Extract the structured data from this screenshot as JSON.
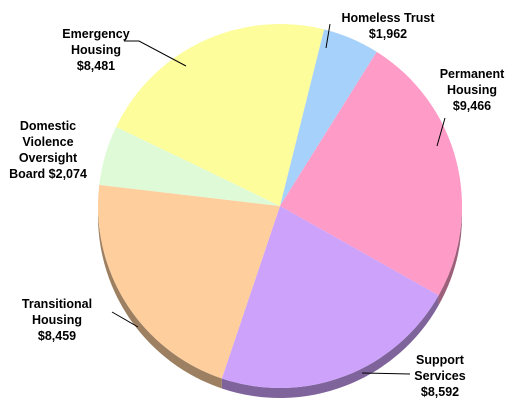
{
  "chart_data": {
    "type": "pie",
    "title": "",
    "slices": [
      {
        "name": "Homeless Trust",
        "value": 1962,
        "value_label": "$1,962",
        "color": "#a6d1fa"
      },
      {
        "name": "Permanent Housing",
        "value": 9466,
        "value_label": "$9,466",
        "color": "#fe9bc7"
      },
      {
        "name": "Support Services",
        "value": 8592,
        "value_label": "$8,592",
        "color": "#cda2fb"
      },
      {
        "name": "Transitional Housing",
        "value": 8459,
        "value_label": "$8,459",
        "color": "#fece9d"
      },
      {
        "name": "Domestic Violence Oversight Board",
        "value": 2074,
        "value_label": "$2,074",
        "color": "#dffad7"
      },
      {
        "name": "Emergency Housing",
        "value": 8481,
        "value_label": "$8,481",
        "color": "#fdfd9c"
      }
    ],
    "labels": {
      "homeless_trust": [
        "Homeless Trust",
        "$1,962"
      ],
      "permanent_housing": [
        "Permanent",
        "Housing",
        "$9,466"
      ],
      "support_services": [
        "Support",
        "Services",
        "$8,592"
      ],
      "transitional_housing": [
        "Transitional",
        "Housing",
        "$8,459"
      ],
      "domestic_violence": [
        "Domestic",
        "Violence",
        "Oversight",
        "Board $2,074"
      ],
      "emergency_housing": [
        "Emergency",
        "Housing",
        "$8,481"
      ]
    }
  }
}
